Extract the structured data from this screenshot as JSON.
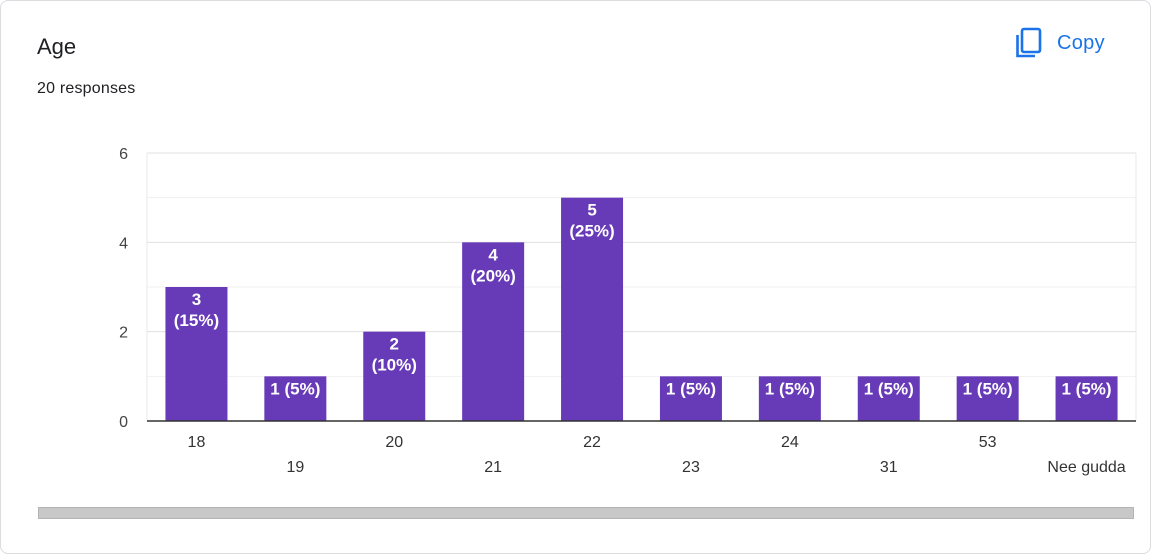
{
  "header": {
    "title": "Age",
    "responses": "20 responses",
    "copy_label": "Copy"
  },
  "icons": {
    "copy": "copy-icon"
  },
  "colors": {
    "bar": "#673ab7",
    "accent": "#1a73e8"
  },
  "chart_data": {
    "type": "bar",
    "title": "Age",
    "xlabel": "",
    "ylabel": "",
    "categories": [
      "18",
      "19",
      "20",
      "21",
      "22",
      "23",
      "24",
      "31",
      "53",
      "Nee gudda"
    ],
    "values": [
      3,
      1,
      2,
      4,
      5,
      1,
      1,
      1,
      1,
      1
    ],
    "data_labels": [
      [
        "3",
        "(15%)"
      ],
      [
        "1 (5%)"
      ],
      [
        "2",
        "(10%)"
      ],
      [
        "4",
        "(20%)"
      ],
      [
        "5",
        "(25%)"
      ],
      [
        "1 (5%)"
      ],
      [
        "1 (5%)"
      ],
      [
        "1 (5%)"
      ],
      [
        "1 (5%)"
      ],
      [
        "1 (5%)"
      ]
    ],
    "yticks": [
      0,
      2,
      4,
      6
    ],
    "ylim": [
      0,
      6
    ],
    "grid": true,
    "legend": "none"
  }
}
